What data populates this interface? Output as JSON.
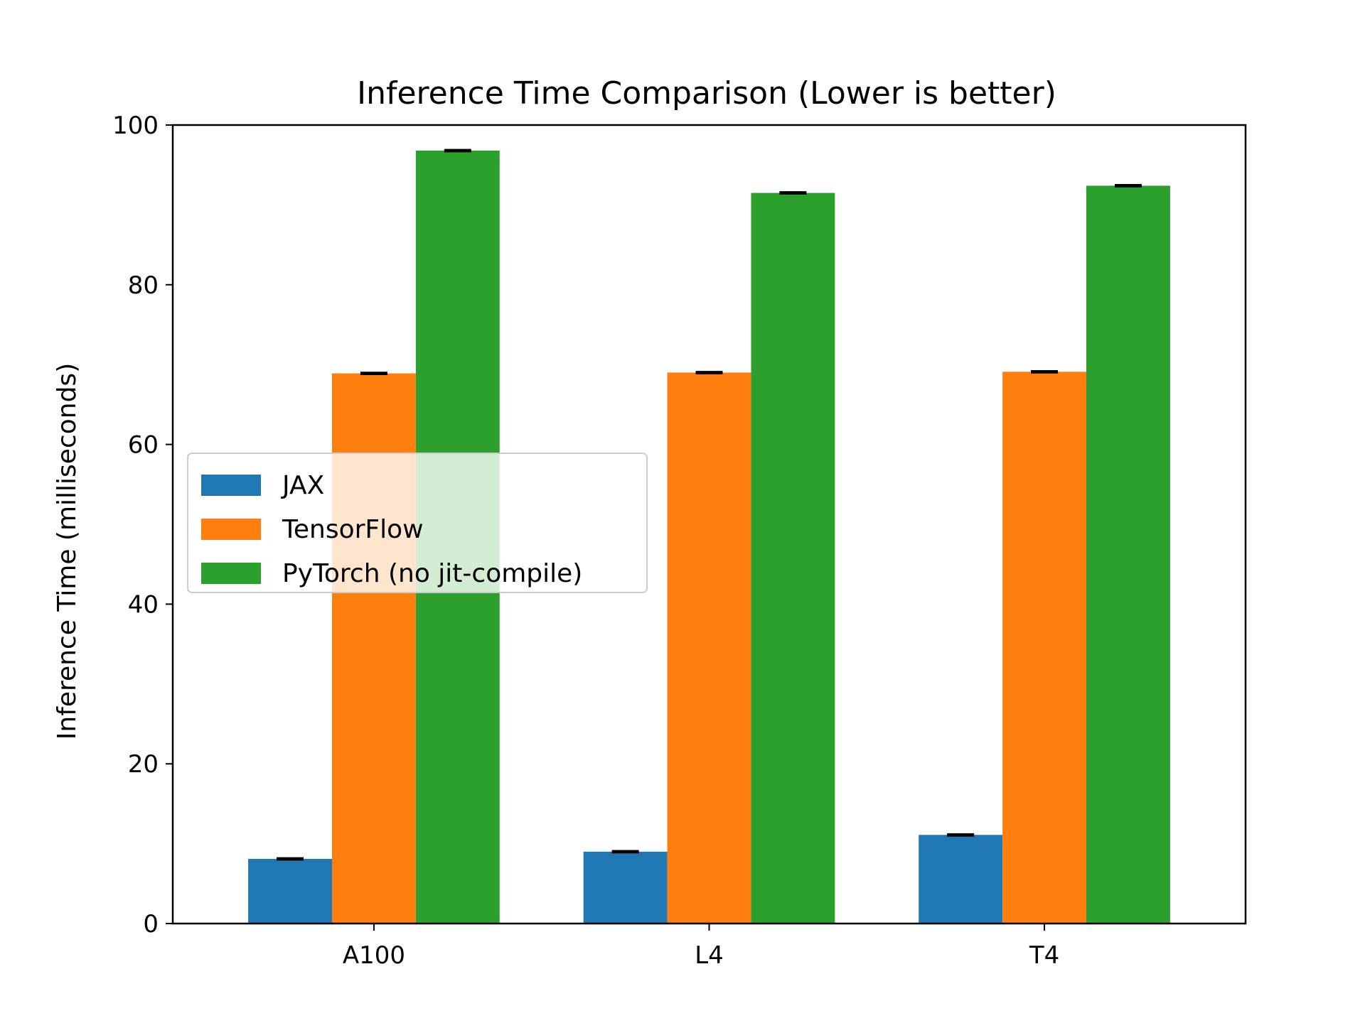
{
  "chart_data": {
    "type": "bar",
    "title": "Inference Time Comparison (Lower is better)",
    "xlabel": "",
    "ylabel": "Inference Time (milliseconds)",
    "categories": [
      "A100",
      "L4",
      "T4"
    ],
    "ylim": [
      0,
      100
    ],
    "yticks": [
      0,
      20,
      40,
      60,
      80,
      100
    ],
    "grid": false,
    "legend_position": "center-left",
    "error_bars": true,
    "series": [
      {
        "name": "JAX",
        "color": "#1f77b4",
        "values": [
          8.1,
          9.0,
          11.1
        ],
        "errors": [
          0.1,
          0.1,
          0.1
        ]
      },
      {
        "name": "TensorFlow",
        "color": "#ff7f0e",
        "values": [
          68.9,
          69.0,
          69.1
        ],
        "errors": [
          0.1,
          0.1,
          0.1
        ]
      },
      {
        "name": "PyTorch (no jit-compile)",
        "color": "#2ca02c",
        "values": [
          96.8,
          91.5,
          92.4
        ],
        "errors": [
          0.1,
          0.1,
          0.1
        ]
      }
    ]
  }
}
